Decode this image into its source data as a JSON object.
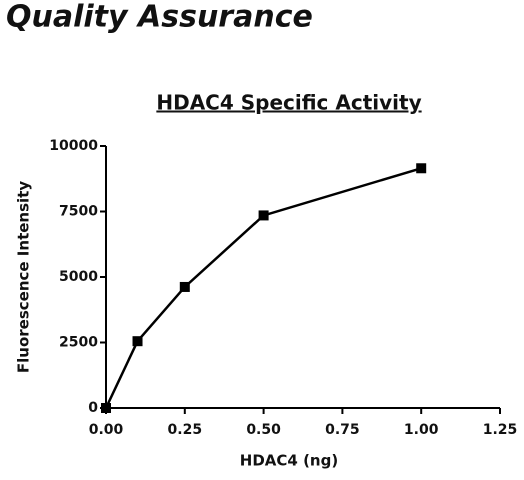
{
  "header": {
    "title": "Quality Assurance"
  },
  "chart_data": {
    "type": "line",
    "title": "HDAC4 Specific Activity",
    "x_label": "HDAC4 (ng)",
    "y_label": "Fluorescence Intensity",
    "x": [
      0,
      0.1,
      0.25,
      0.5,
      1.0
    ],
    "series": [
      {
        "name": "HDAC4",
        "color": "#000000",
        "values": [
          0,
          2550,
          4620,
          7350,
          9150
        ]
      }
    ],
    "xlim": [
      0,
      1.25
    ],
    "xticks": [
      {
        "value": 0,
        "label": "0.00"
      },
      {
        "value": 0.25,
        "label": "0.25"
      },
      {
        "value": 0.5,
        "label": "0.50"
      },
      {
        "value": 0.75,
        "label": "0.75"
      },
      {
        "value": 1.0,
        "label": "1.00"
      },
      {
        "value": 1.25,
        "label": "1.25"
      }
    ],
    "ylim": [
      0,
      10000
    ],
    "yticks": [
      0,
      2500,
      5000,
      7500,
      10000
    ],
    "grid": false
  }
}
